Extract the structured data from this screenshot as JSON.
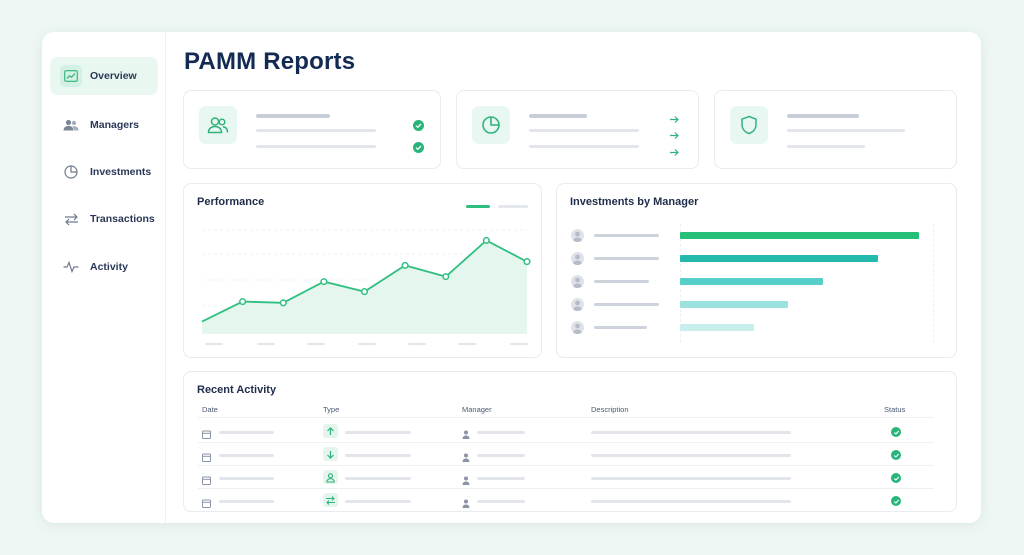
{
  "page": {
    "title": "PAMM Reports"
  },
  "sidebar": {
    "items": [
      {
        "label": "Overview",
        "icon": "trend-up-icon",
        "active": true
      },
      {
        "label": "Managers",
        "icon": "users-icon",
        "active": false
      },
      {
        "label": "Investments",
        "icon": "pie-chart-icon",
        "active": false
      },
      {
        "label": "Transactions",
        "icon": "swap-arrows-icon",
        "active": false
      },
      {
        "label": "Activity",
        "icon": "pulse-icon",
        "active": false
      }
    ]
  },
  "stat_cards": [
    {
      "icon": "users-icon",
      "marks": "check-circle-icon"
    },
    {
      "icon": "pie-chart-icon",
      "marks": "arrow-right-icon"
    },
    {
      "icon": "shield-icon",
      "marks": ""
    }
  ],
  "performance": {
    "title": "Performance",
    "chart_data": {
      "type": "line",
      "title": "Performance",
      "series": [
        {
          "values": [
            1,
            2.6,
            2.5,
            4.2,
            3.4,
            5.5,
            4.6,
            7.5,
            5.8
          ]
        }
      ],
      "ylim": [
        0,
        8.5
      ],
      "grid": true,
      "legend_placement": "top-right",
      "line_color": "#2fbf7f",
      "fill_color": "#dff5ea"
    }
  },
  "investments_by_manager": {
    "title": "Investments by Manager",
    "chart_data": {
      "type": "bar",
      "orientation": "horizontal",
      "values": [
        100,
        83,
        60,
        45,
        31
      ],
      "xlim": [
        0,
        100
      ],
      "colors": [
        "#26bf78",
        "#25b9ad",
        "#57cfc9",
        "#9be2de",
        "#c8efeb"
      ]
    }
  },
  "recent_activity": {
    "title": "Recent Activity",
    "columns": [
      "Date",
      "Type",
      "Manager",
      "Description",
      "Status"
    ],
    "rows": [
      {
        "type_icon": "arrow-up-icon",
        "status": "check-circle-icon"
      },
      {
        "type_icon": "arrow-down-icon",
        "status": "check-circle-icon"
      },
      {
        "type_icon": "user-icon",
        "status": "check-circle-icon"
      },
      {
        "type_icon": "swap-arrows-icon",
        "status": "check-circle-icon"
      }
    ]
  },
  "colors": {
    "accent": "#27b579",
    "title": "#132a52",
    "background": "#eef7f4"
  }
}
